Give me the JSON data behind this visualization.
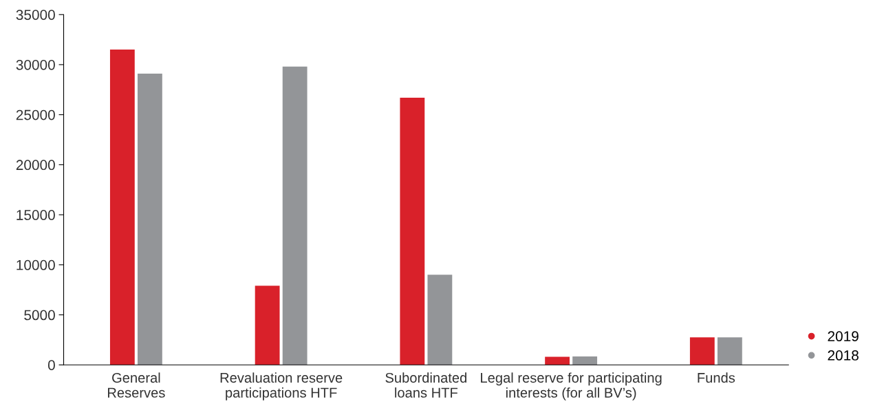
{
  "chart_data": {
    "type": "bar",
    "categories": [
      "General\nReserves",
      "Revaluation reserve\nparticipations HTF",
      "Subordinated\nloans HTF",
      "Legal reserve for participating\ninterests (for all BV’s)",
      "Funds"
    ],
    "series": [
      {
        "name": "2019",
        "color": "#d9212a",
        "values": [
          31500,
          7900,
          26700,
          800,
          2750
        ]
      },
      {
        "name": "2018",
        "color": "#939598",
        "values": [
          29100,
          29800,
          9000,
          850,
          2750
        ]
      }
    ],
    "ylim": [
      0,
      35000
    ],
    "yticks": [
      0,
      5000,
      10000,
      15000,
      20000,
      25000,
      30000,
      35000
    ],
    "grid": false,
    "legend": "bottom right"
  }
}
